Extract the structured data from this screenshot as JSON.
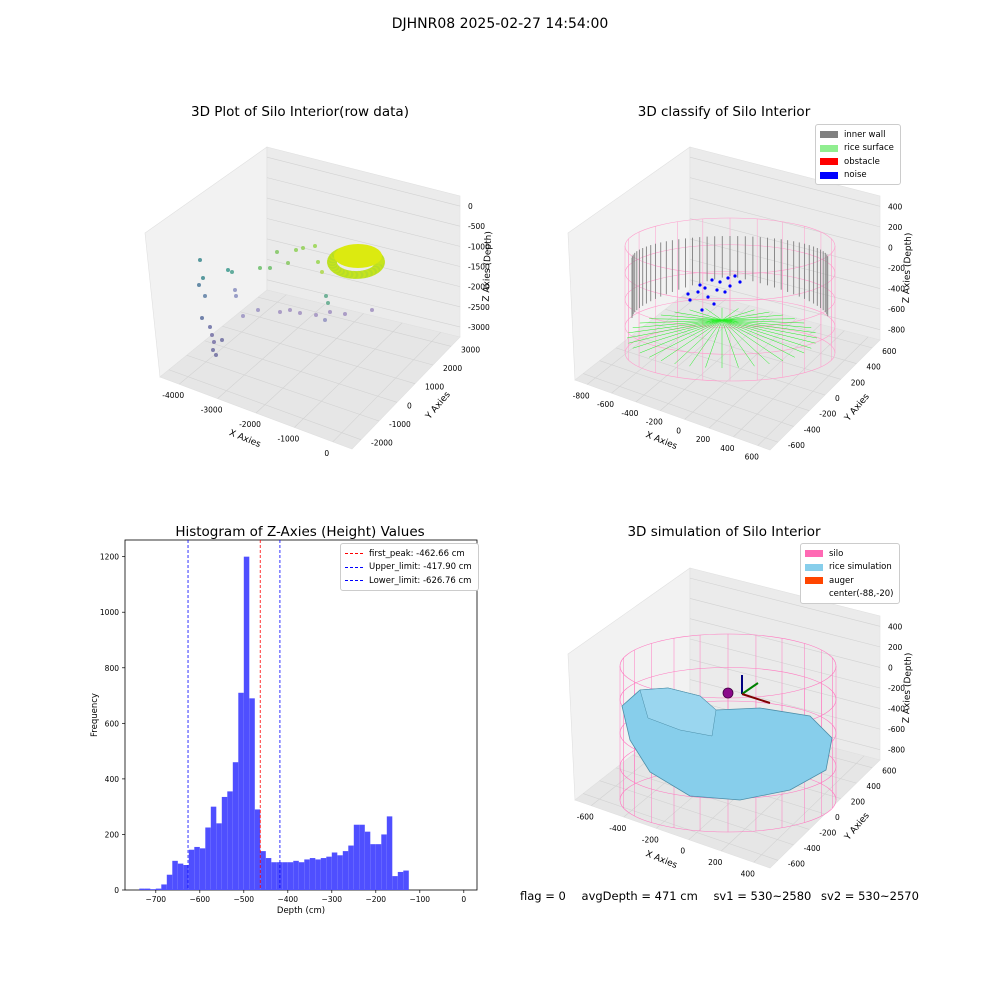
{
  "figure": {
    "suptitle": "DJHNR08 2025-02-27 14:54:00"
  },
  "panels": {
    "raw": {
      "title": "3D Plot of Silo Interior(row data)",
      "xlabel": "X Axies",
      "ylabel": "Y Axies",
      "zlabel": "Z Axies (Depth)",
      "xticks": [
        "-4000",
        "-3000",
        "-2000",
        "-1000",
        "0"
      ],
      "yticks": [
        "-2000",
        "-1000",
        "0",
        "1000",
        "2000",
        "3000"
      ],
      "zticks": [
        "0",
        "-500",
        "-1000",
        "-1500",
        "-2000",
        "-2500",
        "-3000"
      ]
    },
    "classify": {
      "title": "3D classify of Silo Interior",
      "xlabel": "X Axies",
      "ylabel": "Y Axies",
      "zlabel": "Z Axies (Depth)",
      "xticks": [
        "-800",
        "-600",
        "-400",
        "-200",
        "0",
        "200",
        "400",
        "600"
      ],
      "yticks": [
        "-600",
        "-400",
        "-200",
        "0",
        "200",
        "400",
        "600"
      ],
      "zticks": [
        "400",
        "200",
        "0",
        "-200",
        "-400",
        "-600",
        "-800"
      ],
      "legend": [
        {
          "label": "inner wall",
          "color": "#808080"
        },
        {
          "label": "rice surface",
          "color": "#90ee90"
        },
        {
          "label": "obstacle",
          "color": "#ff0000"
        },
        {
          "label": "noise",
          "color": "#0000ff"
        }
      ]
    },
    "simulation": {
      "title": "3D simulation of Silo Interior",
      "xlabel": "X Axies",
      "ylabel": "Y Axies",
      "zlabel": "Z Axies (Depth)",
      "xticks": [
        "-600",
        "-400",
        "-200",
        "0",
        "200",
        "400"
      ],
      "yticks": [
        "-600",
        "-400",
        "-200",
        "0",
        "200",
        "400",
        "600"
      ],
      "zticks": [
        "400",
        "200",
        "0",
        "-200",
        "-400",
        "-600",
        "-800"
      ],
      "legend": [
        {
          "label": "silo",
          "color": "#ff69b4"
        },
        {
          "label": "rice simulation",
          "color": "#87ceeb"
        },
        {
          "label": "auger",
          "color": "#ff4500"
        },
        {
          "label": "center(-88,-20)",
          "color": "none"
        }
      ]
    }
  },
  "chart_data": [
    {
      "type": "bar",
      "title": "Histogram of Z-Axies (Height) Values",
      "xlabel": "Depth (cm)",
      "ylabel": "Frequency",
      "xlim": [
        -770,
        30
      ],
      "ylim": [
        0,
        1260
      ],
      "xticks": [
        -700,
        -600,
        -500,
        -400,
        -300,
        -200,
        -100,
        0
      ],
      "yticks": [
        0,
        200,
        400,
        600,
        800,
        1000,
        1200
      ],
      "bin_width": 12.5,
      "bin_starts": [
        -737.5,
        -725,
        -712.5,
        -700,
        -687.5,
        -675,
        -662.5,
        -650,
        -637.5,
        -625,
        -612.5,
        -600,
        -587.5,
        -575,
        -562.5,
        -550,
        -537.5,
        -525,
        -512.5,
        -500,
        -487.5,
        -475,
        -462.5,
        -450,
        -437.5,
        -425,
        -412.5,
        -400,
        -387.5,
        -375,
        -362.5,
        -350,
        -337.5,
        -325,
        -312.5,
        -300,
        -287.5,
        -275,
        -262.5,
        -250,
        -237.5,
        -225,
        -212.5,
        -200,
        -187.5,
        -175,
        -162.5,
        -150,
        -137.5,
        -125,
        -112.5,
        -100,
        -87.5,
        -75,
        -62.5,
        -50,
        -37.5,
        -25,
        -12.5
      ],
      "values": [
        5,
        5,
        3,
        5,
        20,
        55,
        105,
        95,
        90,
        145,
        155,
        150,
        225,
        300,
        240,
        335,
        355,
        460,
        710,
        1200,
        690,
        290,
        140,
        115,
        100,
        100,
        100,
        100,
        105,
        100,
        110,
        115,
        110,
        115,
        120,
        135,
        125,
        140,
        160,
        235,
        235,
        210,
        165,
        165,
        200,
        265,
        50,
        65,
        70,
        0,
        0,
        0,
        0,
        0,
        0,
        0,
        0,
        0,
        0
      ],
      "color": "#4f4fff",
      "series": [
        {
          "name": "first_peak: -462.66 cm",
          "value": -462.66,
          "color": "#ff0000",
          "style": "dashed"
        },
        {
          "name": "Upper_limit: -417.90 cm",
          "value": -417.9,
          "color": "#0000ff",
          "style": "dashed"
        },
        {
          "name": "Lower_limit: -626.76 cm",
          "value": -626.76,
          "color": "#0000ff",
          "style": "dashed"
        }
      ],
      "legend_position": "top-right",
      "grid": false
    }
  ],
  "footer": {
    "flag": "flag = 0",
    "avg_depth": "avgDepth = 471 cm",
    "sv1": "sv1 = 530~2580",
    "sv2": "sv2 = 530~2570"
  }
}
